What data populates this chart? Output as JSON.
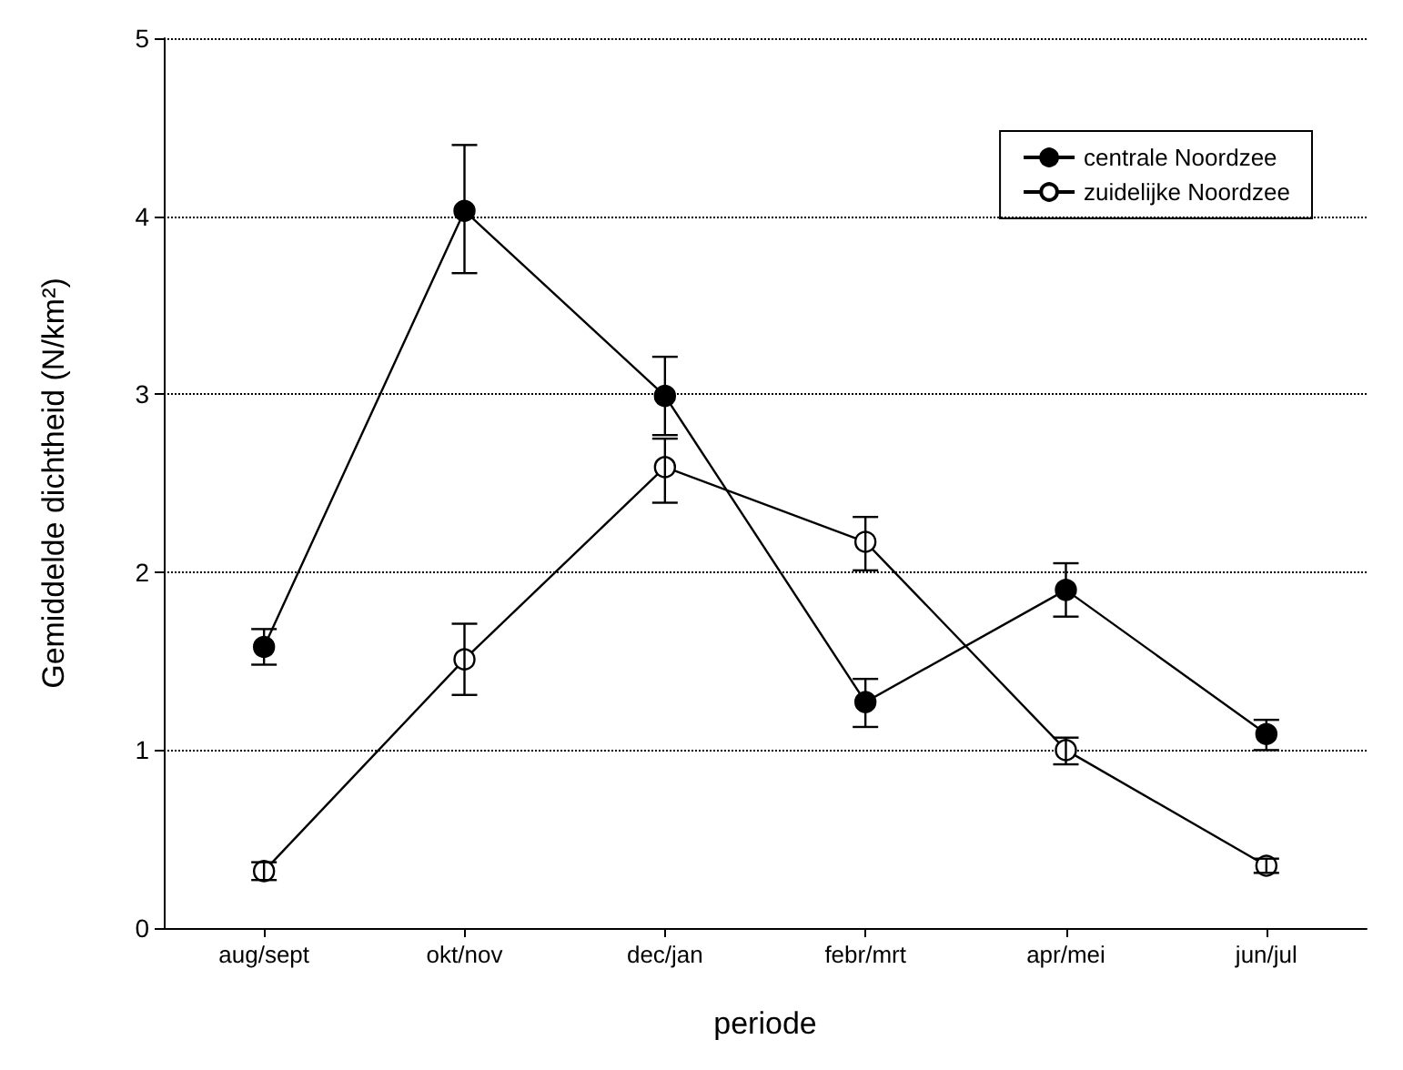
{
  "chart_data": {
    "type": "line",
    "xlabel": "periode",
    "ylabel": "Gemiddelde dichtheid (N/km²)",
    "categories": [
      "aug/sept",
      "okt/nov",
      "dec/jan",
      "febr/mrt",
      "apr/mei",
      "jun/jul"
    ],
    "series": [
      {
        "name": "centrale Noordzee",
        "color": "#000000",
        "values": [
          1.58,
          4.03,
          2.99,
          1.27,
          1.9,
          1.09
        ],
        "errors": [
          [
            1.48,
            1.68
          ],
          [
            3.68,
            4.4
          ],
          [
            2.77,
            3.21
          ],
          [
            1.13,
            1.4
          ],
          [
            1.75,
            2.05
          ],
          [
            1.0,
            1.17
          ]
        ]
      },
      {
        "name": "zuidelijke Noordzee",
        "color": "#000000",
        "colors": [
          "#ffffff",
          "#ffffff",
          "#ffffff",
          "#ffffff",
          "#ffffff",
          "#ffffff"
        ],
        "values": [
          0.32,
          1.51,
          2.59,
          2.17,
          1.0,
          0.35
        ],
        "errors": [
          [
            0.27,
            0.37
          ],
          [
            1.31,
            1.71
          ],
          [
            2.39,
            2.75
          ],
          [
            2.01,
            2.31
          ],
          [
            0.92,
            1.07
          ],
          [
            0.31,
            0.39
          ]
        ]
      }
    ],
    "ylim": [
      0,
      5
    ],
    "yticks": [
      0,
      1,
      2,
      3,
      4,
      5
    ],
    "grid": "y",
    "legend": "top right",
    "marker": "circle"
  }
}
